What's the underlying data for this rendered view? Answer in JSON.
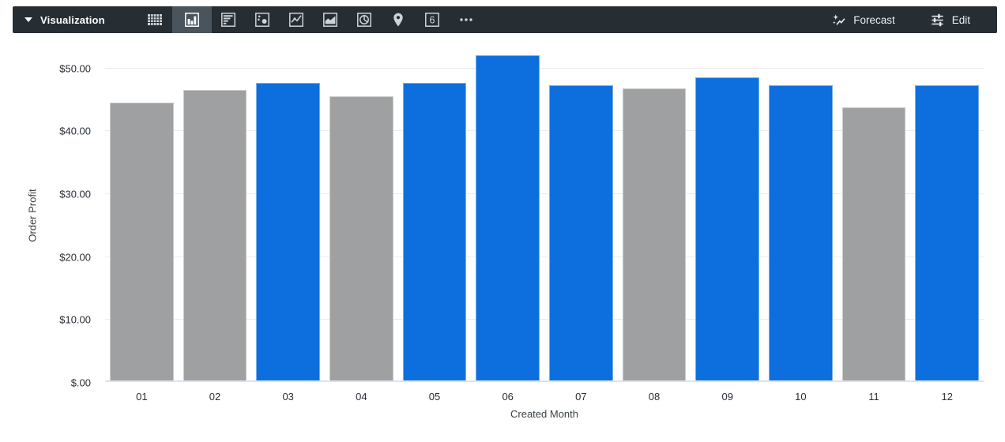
{
  "toolbar": {
    "title": "Visualization",
    "forecast_label": "Forecast",
    "edit_label": "Edit",
    "single_value_glyph": "6",
    "colors": {
      "bar_bg": "#262d33",
      "selected_bg": "#4a545c"
    },
    "chart_types": [
      {
        "name": "table",
        "selected": false
      },
      {
        "name": "column",
        "selected": true
      },
      {
        "name": "bar",
        "selected": false
      },
      {
        "name": "scatter",
        "selected": false
      },
      {
        "name": "line",
        "selected": false
      },
      {
        "name": "area",
        "selected": false
      },
      {
        "name": "pie",
        "selected": false
      },
      {
        "name": "map",
        "selected": false
      },
      {
        "name": "single-value",
        "selected": false
      },
      {
        "name": "more",
        "selected": false
      }
    ]
  },
  "chart_data": {
    "type": "bar",
    "title": "",
    "xlabel": "Created Month",
    "ylabel": "Order Profit",
    "categories": [
      "01",
      "02",
      "03",
      "04",
      "05",
      "06",
      "07",
      "08",
      "09",
      "10",
      "11",
      "12"
    ],
    "values": [
      44.4,
      46.4,
      47.5,
      45.4,
      47.5,
      51.9,
      47.2,
      46.6,
      48.4,
      47.2,
      43.6,
      47.2
    ],
    "bar_colors": [
      "gray",
      "gray",
      "blue",
      "gray",
      "blue",
      "blue",
      "blue",
      "gray",
      "blue",
      "blue",
      "gray",
      "blue"
    ],
    "colors": {
      "gray": "#9fa0a1",
      "blue": "#0d6fdd"
    },
    "ylim": [
      0,
      52.2
    ],
    "grid": true,
    "legend": "none",
    "y_ticks": [
      {
        "value": 0,
        "label": "$.00"
      },
      {
        "value": 10,
        "label": "$10.00"
      },
      {
        "value": 20,
        "label": "$20.00"
      },
      {
        "value": 30,
        "label": "$30.00"
      },
      {
        "value": 40,
        "label": "$40.00"
      },
      {
        "value": 50,
        "label": "$50.00"
      }
    ]
  }
}
